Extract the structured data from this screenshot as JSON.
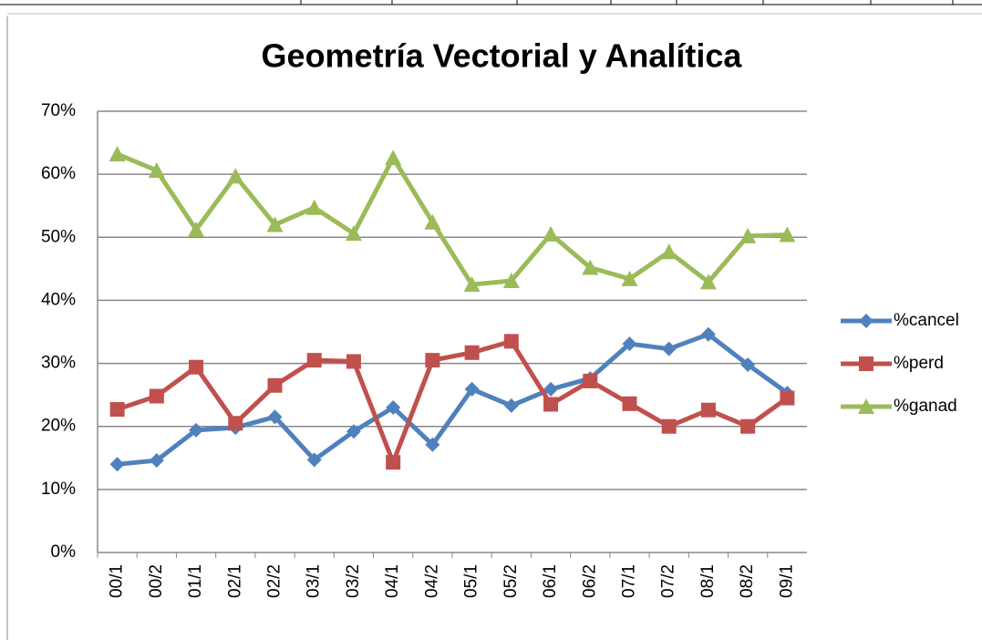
{
  "chart_data": {
    "type": "line",
    "title": "Geometría Vectorial y Analítica",
    "categories": [
      "00/1",
      "00/2",
      "01/1",
      "02/1",
      "02/2",
      "03/1",
      "03/2",
      "04/1",
      "04/2",
      "05/1",
      "05/2",
      "06/1",
      "06/2",
      "07/1",
      "07/2",
      "08/1",
      "08/2",
      "09/1"
    ],
    "series": [
      {
        "name": "%cancel",
        "color": "#4f81bd",
        "marker": "diamond",
        "values": [
          14,
          14.6,
          19.4,
          19.8,
          21.5,
          14.7,
          19.2,
          23,
          17.1,
          25.9,
          23.3,
          25.9,
          27.6,
          33.1,
          32.3,
          34.6,
          29.8,
          25.3
        ]
      },
      {
        "name": "%perd",
        "color": "#c0504d",
        "marker": "square",
        "values": [
          22.7,
          24.8,
          29.4,
          20.5,
          26.5,
          30.5,
          30.3,
          14.3,
          30.5,
          31.7,
          33.5,
          23.5,
          27.2,
          23.6,
          20,
          22.6,
          20,
          24.5
        ]
      },
      {
        "name": "%ganad",
        "color": "#9bbb59",
        "marker": "triangle",
        "values": [
          63.2,
          60.6,
          51.2,
          59.7,
          52,
          54.7,
          50.6,
          62.6,
          52.4,
          42.5,
          43.1,
          50.5,
          45.2,
          43.4,
          47.7,
          42.9,
          50.2,
          50.4
        ]
      }
    ],
    "ylim": [
      0,
      70
    ],
    "yticks": [
      {
        "value": 0,
        "label": "0%"
      },
      {
        "value": 10,
        "label": "10%"
      },
      {
        "value": 20,
        "label": "20%"
      },
      {
        "value": 30,
        "label": "30%"
      },
      {
        "value": 40,
        "label": "40%"
      },
      {
        "value": 50,
        "label": "50%"
      },
      {
        "value": 60,
        "label": "60%"
      },
      {
        "value": 70,
        "label": "70%"
      }
    ],
    "grid": true,
    "legend": "right"
  }
}
